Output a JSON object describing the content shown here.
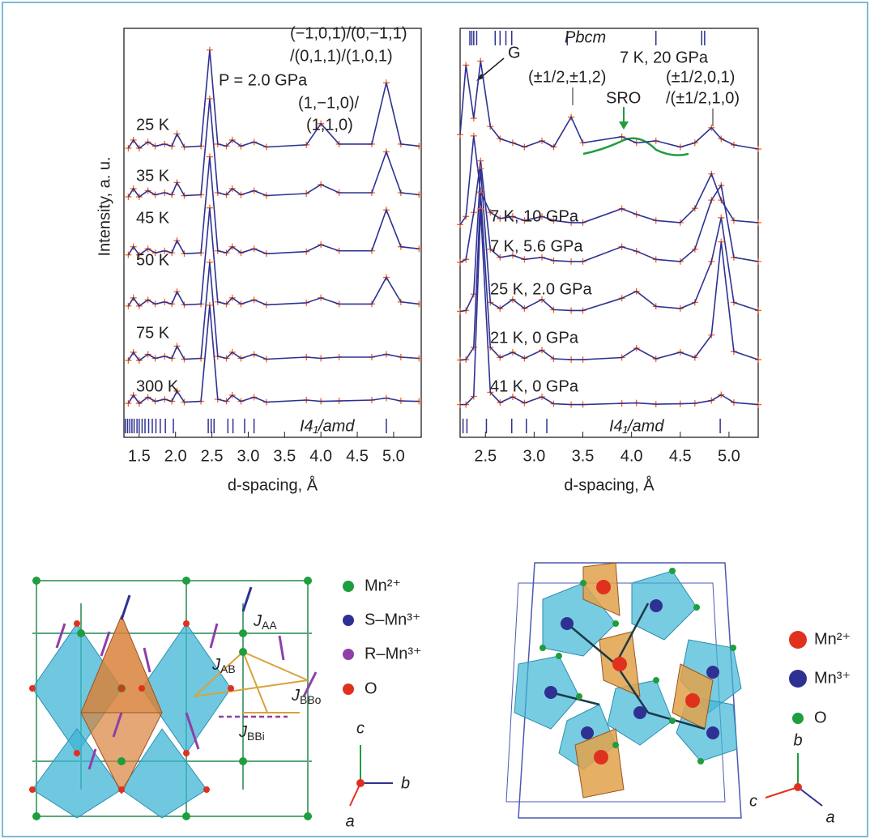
{
  "chart_data": [
    {
      "type": "line",
      "y_label": "Intensity, a. u.",
      "x_label": "d-spacing, Å",
      "xlim": [
        1.29,
        5.38
      ],
      "ylim": [
        0,
        100
      ],
      "xticks": [
        1.5,
        {
          "value": 2,
          "label": "2.0"
        },
        2.5,
        {
          "value": 3,
          "label": "3.0"
        },
        3.5,
        {
          "value": 4,
          "label": "4.0"
        },
        4.5,
        {
          "value": 5,
          "label": "5.0"
        }
      ],
      "line_color": "#2e3192",
      "marker_color": "#f26522",
      "x": [
        1.35,
        1.42,
        1.5,
        1.62,
        1.72,
        1.85,
        1.95,
        2.02,
        2.12,
        2.35,
        2.47,
        2.58,
        2.7,
        2.78,
        2.9,
        3.08,
        3.25,
        3.8,
        4.0,
        4.25,
        4.7,
        4.9,
        5.1,
        5.35
      ],
      "series": [
        {
          "name": "25 K",
          "values": [
            70.7,
            72.7,
            70.7,
            72.2,
            71.2,
            71.7,
            71.2,
            74.2,
            71,
            71.2,
            94.7,
            71.7,
            71.2,
            72.7,
            71.2,
            72.2,
            71,
            71.5,
            76.7,
            71.7,
            71.7,
            86.7,
            71.7,
            71.2
          ]
        },
        {
          "name": "35 K",
          "values": [
            58.8,
            60.8,
            58.8,
            60.3,
            59.3,
            59.8,
            59.3,
            62.3,
            59.1,
            59.3,
            82.8,
            59.8,
            59.3,
            60.8,
            59.3,
            60.3,
            59.1,
            59.6,
            61.8,
            59.8,
            59.8,
            69.8,
            59.8,
            59.3
          ]
        },
        {
          "name": "45 K",
          "values": [
            44.6,
            46.6,
            44.6,
            46.1,
            45.1,
            45.6,
            45.1,
            48.1,
            44.9,
            45.1,
            68.6,
            45.6,
            45.1,
            46.6,
            45.1,
            46.1,
            44.9,
            45.4,
            47.1,
            45.6,
            45.6,
            55.6,
            46.6,
            46.1
          ]
        },
        {
          "name": "50 K",
          "values": [
            32.1,
            34.1,
            32.1,
            33.6,
            32.6,
            33.1,
            32.6,
            35.6,
            32.4,
            32.6,
            56.1,
            33.1,
            32.6,
            34.1,
            32.6,
            33.6,
            32.4,
            32.9,
            34.1,
            32.6,
            32.6,
            39.1,
            33.1,
            32.6
          ]
        },
        {
          "name": "75 K",
          "values": [
            18.8,
            20.8,
            18.8,
            20.3,
            19.3,
            19.8,
            19.3,
            22.3,
            19.1,
            19.3,
            42.8,
            19.8,
            19.3,
            20.8,
            19.3,
            20.3,
            19.1,
            19.6,
            19.3,
            19.6,
            19.6,
            20.3,
            19.6,
            19.3
          ]
        },
        {
          "name": "300 K",
          "values": [
            8.3,
            10.3,
            8.3,
            9.8,
            8.8,
            9.3,
            8.8,
            11.3,
            8.6,
            8.8,
            32.3,
            9.3,
            8.8,
            10.3,
            8.8,
            9.8,
            8.6,
            9.1,
            8.8,
            8.9,
            9.1,
            9.6,
            8.9,
            8.8
          ]
        }
      ],
      "markers": [
        {
          "name": "I4₁/amd",
          "color": "#2e3192",
          "x": [
            1.31,
            1.34,
            1.37,
            1.4,
            1.43,
            1.47,
            1.5,
            1.54,
            1.58,
            1.63,
            1.68,
            1.73,
            1.79,
            1.86,
            1.97,
            2.45,
            2.49,
            2.53,
            2.72,
            2.79,
            2.95,
            3.08,
            4.9
          ]
        }
      ],
      "annotations": [
        {
          "text": "P = 2.0 GPa",
          "color": "#231f20"
        },
        {
          "text": "(−1,0,1)/(0,−1,1)",
          "color": "#2e3192"
        },
        {
          "text": "/(0,1,1)/(1,0,1)",
          "color": "#2e3192"
        },
        {
          "text": "(1,−1,0)/",
          "color": "#2e3192"
        },
        {
          "text": "(1,1,0)",
          "color": "#2e3192"
        }
      ]
    },
    {
      "type": "line",
      "x_label": "d-spacing, Å",
      "xlim": [
        2.24,
        5.3
      ],
      "ylim": [
        0,
        100
      ],
      "xticks": [
        2.5,
        {
          "value": 3,
          "label": "3.0"
        },
        3.5,
        {
          "value": 4,
          "label": "4.0"
        },
        4.5,
        {
          "value": 5,
          "label": "5.0"
        }
      ],
      "line_color": "#2e3192",
      "marker_color": "#f26522",
      "x": [
        2.24,
        2.3,
        2.38,
        2.45,
        2.55,
        2.65,
        2.78,
        2.9,
        3.08,
        3.2,
        3.38,
        3.5,
        3.9,
        4.05,
        4.25,
        4.5,
        4.65,
        4.82,
        4.92,
        5.05,
        5.3
      ],
      "series": [
        {
          "name": "7 K, 20 GPa",
          "values": [
            74,
            91,
            78,
            92,
            76,
            73,
            72,
            71,
            72.5,
            71,
            78.3,
            72,
            73.5,
            72,
            72.5,
            71,
            72,
            75.7,
            73,
            71.5,
            70.5
          ]
        },
        {
          "name": "7 K, 10 GPa",
          "values": [
            52,
            54,
            73.7,
            60,
            55,
            53.5,
            54,
            53,
            54,
            53,
            52.5,
            52.5,
            55.9,
            54.5,
            53,
            52.5,
            56,
            64.4,
            58,
            53,
            52.5
          ]
        },
        {
          "name": "7 K, 5.6 GPa",
          "values": [
            42.8,
            43.5,
            55,
            67.6,
            46,
            44,
            44.5,
            43.5,
            44,
            43.2,
            43,
            43,
            46.6,
            45.5,
            43.5,
            43,
            46,
            58,
            61.6,
            44,
            43
          ]
        },
        {
          "name": "25 K, 2.0 GPa",
          "values": [
            30.8,
            31,
            35,
            65.7,
            33,
            31.5,
            33.7,
            31.5,
            33.7,
            31.2,
            31,
            31,
            34,
            35.7,
            32,
            31.5,
            33,
            43,
            53.7,
            33,
            31
          ]
        },
        {
          "name": "21 K, 0 GPa",
          "values": [
            18.9,
            19,
            22,
            59.8,
            22,
            19.5,
            20.8,
            19.3,
            21.3,
            19.2,
            19,
            19,
            19.5,
            21.8,
            19.2,
            20.8,
            19.5,
            25,
            47.8,
            21,
            19
          ]
        },
        {
          "name": "41 K, 0 GPa",
          "values": [
            8,
            8,
            10,
            55.9,
            11,
            8.5,
            9.9,
            8.4,
            9.9,
            8.2,
            8,
            8,
            8.3,
            8.4,
            8.1,
            8.2,
            8.3,
            9,
            10.4,
            8.5,
            8
          ]
        }
      ],
      "markers": [
        {
          "name": "Pbcm",
          "color": "#2e3192",
          "x": [
            2.34,
            2.36,
            2.38,
            2.41,
            2.6,
            2.65,
            2.71,
            2.77,
            3.34,
            4.25,
            4.72,
            4.75
          ]
        },
        {
          "name": "I4₁/amd",
          "color": "#2e3192",
          "x": [
            2.27,
            2.31,
            2.51,
            2.77,
            2.92,
            3.13,
            4.91
          ]
        }
      ],
      "annotations": [
        {
          "text": "G",
          "color": "#231f20"
        },
        {
          "text": "(±1/2,±1,2)",
          "color": "#2e3192"
        },
        {
          "text": "SRO",
          "color": "#1e9e3e"
        },
        {
          "text": "(±1/2,0,1)",
          "color": "#2e3192"
        },
        {
          "text": "/(±1/2,1,0)",
          "color": "#2e3192"
        }
      ]
    }
  ],
  "structures": [
    {
      "legend": [
        {
          "label": "Mn²⁺",
          "color": "#1e9e3e"
        },
        {
          "label": "S–Mn³⁺",
          "color": "#2e3192"
        },
        {
          "label": "R–Mn³⁺",
          "color": "#8e3fa8"
        },
        {
          "label": "O",
          "color": "#e0311f"
        }
      ],
      "bonds": [
        {
          "symbol": "J",
          "sub": "AA"
        },
        {
          "symbol": "J",
          "sub": "AB"
        },
        {
          "symbol": "J",
          "sub": "BBo"
        },
        {
          "symbol": "J",
          "sub": "BBi"
        }
      ],
      "axes": [
        {
          "label": "c",
          "color": "#1e9e3e"
        },
        {
          "label": "b",
          "color": "#2e3192"
        },
        {
          "label": "a",
          "color": "#e0311f"
        }
      ]
    },
    {
      "legend": [
        {
          "label": "Mn²⁺",
          "color": "#e0311f"
        },
        {
          "label": "Mn³⁺",
          "color": "#2e3192"
        },
        {
          "label": "O",
          "color": "#1e9e3e"
        }
      ],
      "axes": [
        {
          "label": "b",
          "color": "#1e9e3e"
        },
        {
          "label": "c",
          "color": "#e0311f"
        },
        {
          "label": "a",
          "color": "#2e3192"
        }
      ]
    }
  ]
}
